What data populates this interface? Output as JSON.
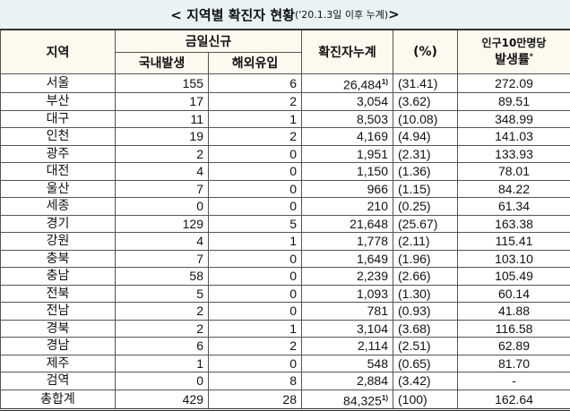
{
  "title": {
    "main": "< 지역별 확진자 현황",
    "sub": "('20.1.3일 이후 누계)",
    "end": " >"
  },
  "headers": {
    "region": "지역",
    "new": "금일신규",
    "domestic": "국내발생",
    "overseas": "해외유입",
    "cumulative": "확진자누계",
    "pct": "(%)",
    "rate_top": "인구10만명당",
    "rate_bottom": "발생률",
    "rate_mark": "*"
  },
  "rows": [
    {
      "region": "서울",
      "domestic": "155",
      "overseas": "6",
      "cumulative": "26,484",
      "note": "1)",
      "pct": "(31.41)",
      "rate": "272.09"
    },
    {
      "region": "부산",
      "domestic": "17",
      "overseas": "2",
      "cumulative": "3,054",
      "note": "",
      "pct": "(3.62)",
      "rate": "89.51"
    },
    {
      "region": "대구",
      "domestic": "11",
      "overseas": "1",
      "cumulative": "8,503",
      "note": "",
      "pct": "(10.08)",
      "rate": "348.99"
    },
    {
      "region": "인천",
      "domestic": "19",
      "overseas": "2",
      "cumulative": "4,169",
      "note": "",
      "pct": "(4.94)",
      "rate": "141.03"
    },
    {
      "region": "광주",
      "domestic": "2",
      "overseas": "0",
      "cumulative": "1,951",
      "note": "",
      "pct": "(2.31)",
      "rate": "133.93"
    },
    {
      "region": "대전",
      "domestic": "4",
      "overseas": "0",
      "cumulative": "1,150",
      "note": "",
      "pct": "(1.36)",
      "rate": "78.01"
    },
    {
      "region": "울산",
      "domestic": "7",
      "overseas": "0",
      "cumulative": "966",
      "note": "",
      "pct": "(1.15)",
      "rate": "84.22"
    },
    {
      "region": "세종",
      "domestic": "0",
      "overseas": "0",
      "cumulative": "210",
      "note": "",
      "pct": "(0.25)",
      "rate": "61.34"
    },
    {
      "region": "경기",
      "domestic": "129",
      "overseas": "5",
      "cumulative": "21,648",
      "note": "",
      "pct": "(25.67)",
      "rate": "163.38"
    },
    {
      "region": "강원",
      "domestic": "4",
      "overseas": "1",
      "cumulative": "1,778",
      "note": "",
      "pct": "(2.11)",
      "rate": "115.41"
    },
    {
      "region": "충북",
      "domestic": "7",
      "overseas": "0",
      "cumulative": "1,649",
      "note": "",
      "pct": "(1.96)",
      "rate": "103.10"
    },
    {
      "region": "충남",
      "domestic": "58",
      "overseas": "0",
      "cumulative": "2,239",
      "note": "",
      "pct": "(2.66)",
      "rate": "105.49"
    },
    {
      "region": "전북",
      "domestic": "5",
      "overseas": "0",
      "cumulative": "1,093",
      "note": "",
      "pct": "(1.30)",
      "rate": "60.14"
    },
    {
      "region": "전남",
      "domestic": "2",
      "overseas": "0",
      "cumulative": "781",
      "note": "",
      "pct": "(0.93)",
      "rate": "41.88"
    },
    {
      "region": "경북",
      "domestic": "2",
      "overseas": "1",
      "cumulative": "3,104",
      "note": "",
      "pct": "(3.68)",
      "rate": "116.58"
    },
    {
      "region": "경남",
      "domestic": "6",
      "overseas": "2",
      "cumulative": "2,114",
      "note": "",
      "pct": "(2.51)",
      "rate": "62.89"
    },
    {
      "region": "제주",
      "domestic": "1",
      "overseas": "0",
      "cumulative": "548",
      "note": "",
      "pct": "(0.65)",
      "rate": "81.70"
    },
    {
      "region": "검역",
      "domestic": "0",
      "overseas": "8",
      "cumulative": "2,884",
      "note": "",
      "pct": "(3.42)",
      "rate": "-"
    },
    {
      "region": "총합계",
      "domestic": "429",
      "overseas": "28",
      "cumulative": "84,325",
      "note": "1)",
      "pct": "(100)",
      "rate": "162.64"
    }
  ]
}
